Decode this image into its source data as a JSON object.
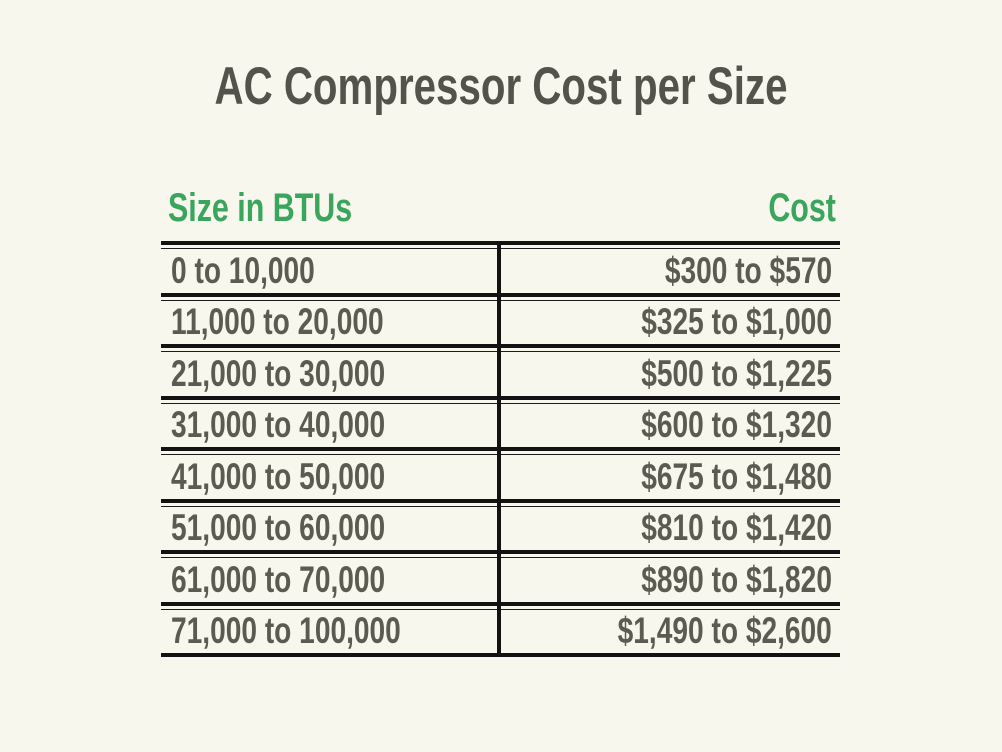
{
  "title": "AC Compressor Cost per Size",
  "colors": {
    "background": "#f8f7ee",
    "accent_green": "#3aa55c",
    "text_gray": "#5c5b52",
    "line_black": "#121212"
  },
  "table": {
    "columns": [
      "Size in BTUs",
      "Cost"
    ],
    "rows": [
      {
        "size": "0 to 10,000",
        "cost": "$300 to $570"
      },
      {
        "size": "11,000 to 20,000",
        "cost": "$325 to $1,000"
      },
      {
        "size": "21,000 to 30,000",
        "cost": "$500 to $1,225"
      },
      {
        "size": "31,000 to 40,000",
        "cost": "$600 to $1,320"
      },
      {
        "size": "41,000 to 50,000",
        "cost": "$675 to $1,480"
      },
      {
        "size": "51,000 to 60,000",
        "cost": "$810 to $1,420"
      },
      {
        "size": "61,000 to 70,000",
        "cost": "$890 to $1,820"
      },
      {
        "size": "71,000 to 100,000",
        "cost": "$1,490 to $2,600"
      }
    ]
  },
  "chart_data": {
    "type": "table",
    "title": "AC Compressor Cost per Size",
    "columns": [
      "Size in BTUs",
      "Cost"
    ],
    "rows": [
      [
        "0 to 10,000",
        "$300 to $570"
      ],
      [
        "11,000 to 20,000",
        "$325 to $1,000"
      ],
      [
        "21,000 to 30,000",
        "$500 to $1,225"
      ],
      [
        "31,000 to 40,000",
        "$600 to $1,320"
      ],
      [
        "41,000 to 50,000",
        "$675 to $1,480"
      ],
      [
        "51,000 to 60,000",
        "$810 to $1,420"
      ],
      [
        "61,000 to 70,000",
        "$890 to $1,820"
      ],
      [
        "71,000 to 100,000",
        "$1,490 to $2,600"
      ]
    ]
  }
}
